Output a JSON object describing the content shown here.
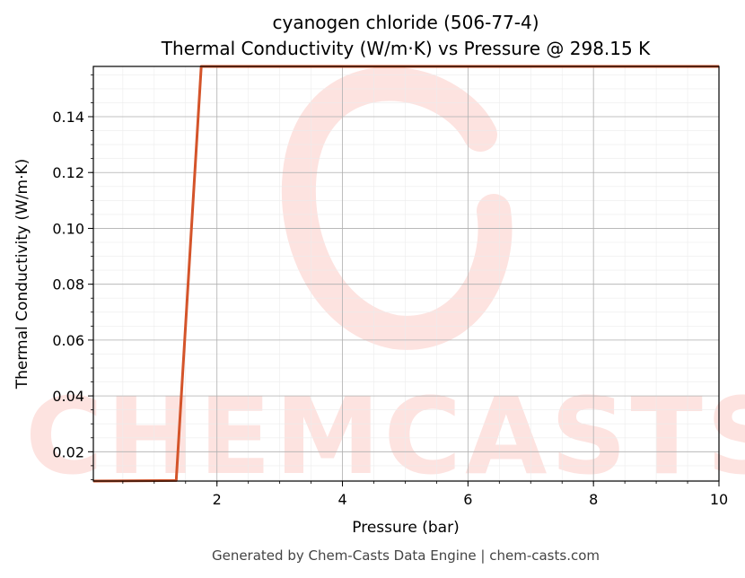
{
  "chart_data": {
    "type": "line",
    "title": "cyanogen chloride (506-77-4)",
    "subtitle": "Thermal Conductivity (W/m·K) vs Pressure @ 298.15 K",
    "xlabel": "Pressure (bar)",
    "ylabel": "Thermal Conductivity (W/m·K)",
    "xlim": [
      0.03,
      10
    ],
    "ylim": [
      0.0095,
      0.158
    ],
    "xticks": [
      2,
      4,
      6,
      8,
      10
    ],
    "yticks": [
      0.02,
      0.04,
      0.06,
      0.08,
      0.1,
      0.12,
      0.14
    ],
    "ytick_labels": [
      "0.02",
      "0.04",
      "0.06",
      "0.08",
      "0.10",
      "0.12",
      "0.14"
    ],
    "grid": true,
    "series": [
      {
        "color": "#d4542a",
        "x": [
          0.03,
          1.35,
          1.75,
          10
        ],
        "y": [
          0.0095,
          0.0097,
          0.158,
          0.158
        ]
      }
    ]
  },
  "watermark": {
    "text": "CHEMCASTS",
    "color": "#fde3e0"
  },
  "footer": "Generated by Chem-Casts Data Engine | chem-casts.com"
}
